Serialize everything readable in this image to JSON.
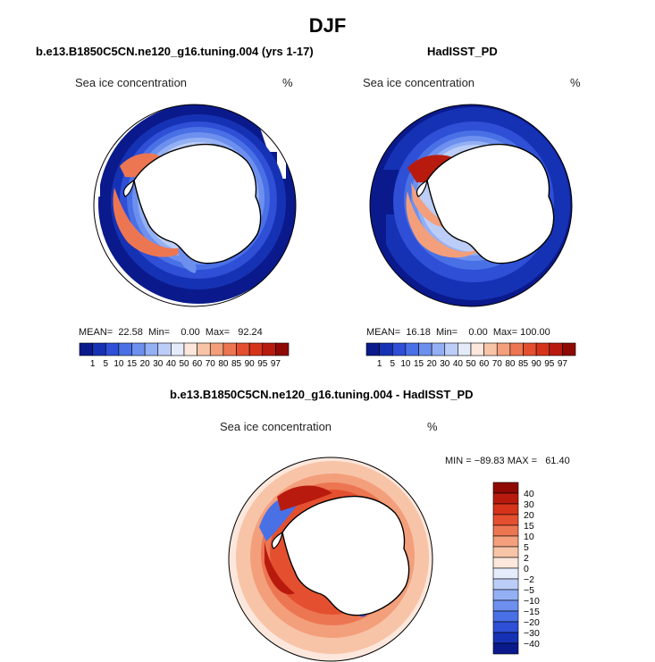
{
  "title": "DJF",
  "colors": {
    "seq": [
      "#0a1a8c",
      "#1632b4",
      "#2e4fd6",
      "#4a70e6",
      "#6d90ef",
      "#93b0f4",
      "#bccdf7",
      "#e4ecfb",
      "#fde7dc",
      "#f8c4a8",
      "#f39f7b",
      "#ed7652",
      "#e4502f",
      "#d5341a",
      "#b81b0e",
      "#8f0a05"
    ],
    "diff": [
      "#0a1a8c",
      "#1632b4",
      "#2e4fd6",
      "#4a70e6",
      "#6d90ef",
      "#93b0f4",
      "#bccdf7",
      "#e4ecfb",
      "#fde7dc",
      "#f8c4a8",
      "#f39f7b",
      "#ed7652",
      "#e4502f",
      "#d5341a",
      "#b81b0e",
      "#8f0a05"
    ],
    "land": "#ffffff",
    "coast": "#000000"
  },
  "panels": [
    {
      "title": "b.e13.B1850C5CN.ne120_g16.tuning.004 (yrs 1-17)",
      "label": "Sea ice concentration",
      "units": "%",
      "stats": "MEAN=  22.58  Min=    0.00  Max=   92.24"
    },
    {
      "title": "HadISST_PD",
      "label": "Sea ice concentration",
      "units": "%",
      "stats": "MEAN=  16.18  Min=    0.00  Max= 100.00"
    },
    {
      "title": "b.e13.B1850C5CN.ne120_g16.tuning.004 - HadISST_PD",
      "label": "Sea ice concentration",
      "units": "%",
      "stats": "MIN = −89.83 MAX =   61.40"
    }
  ],
  "chart_data": [
    {
      "type": "heatmap",
      "title": "b.e13.B1850C5CN.ne120_g16.tuning.004 (yrs 1-17)",
      "variable": "Sea ice concentration",
      "units": "%",
      "projection": "south polar stereographic",
      "summary": {
        "mean": 22.58,
        "min": 0.0,
        "max": 92.24
      },
      "colorbar_levels": [
        "1",
        "5",
        "10",
        "15",
        "20",
        "30",
        "40",
        "50",
        "60",
        "70",
        "80",
        "85",
        "90",
        "95",
        "97"
      ]
    },
    {
      "type": "heatmap",
      "title": "HadISST_PD",
      "variable": "Sea ice concentration",
      "units": "%",
      "projection": "south polar stereographic",
      "summary": {
        "mean": 16.18,
        "min": 0.0,
        "max": 100.0
      },
      "colorbar_levels": [
        "1",
        "5",
        "10",
        "15",
        "20",
        "30",
        "40",
        "50",
        "60",
        "70",
        "80",
        "85",
        "90",
        "95",
        "97"
      ]
    },
    {
      "type": "heatmap",
      "title": "b.e13.B1850C5CN.ne120_g16.tuning.004 - HadISST_PD",
      "variable": "Sea ice concentration",
      "units": "%",
      "projection": "south polar stereographic",
      "summary": {
        "min": -89.83,
        "max": 61.4
      },
      "colorbar_levels": [
        "40",
        "30",
        "20",
        "15",
        "10",
        "5",
        "2",
        "0",
        "−2",
        "−5",
        "−10",
        "−15",
        "−20",
        "−30",
        "−40"
      ]
    }
  ]
}
